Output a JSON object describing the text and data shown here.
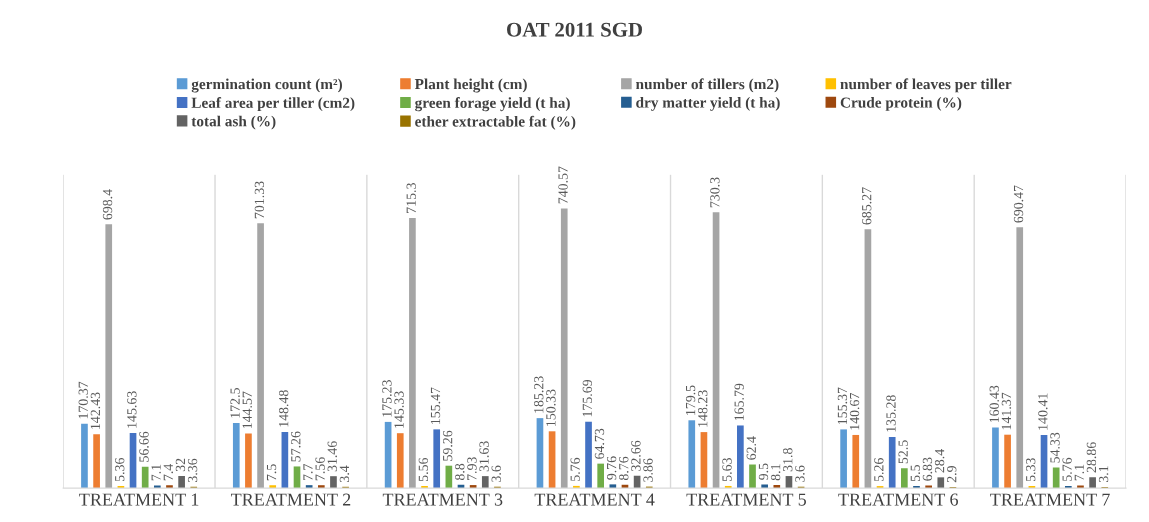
{
  "chart_data": {
    "type": "bar",
    "title": "OAT 2011 SGD",
    "categories": [
      "TREATMENT 1",
      "TREATMENT 2",
      "TREATMENT 3",
      "TREATMENT 4",
      "TREATMENT 5",
      "TREATMENT 6",
      "TREATMENT 7"
    ],
    "series": [
      {
        "name": "germination count (m²)",
        "color": "#5b9bd5",
        "values": [
          170.37,
          172.5,
          175.23,
          185.23,
          179.5,
          155.37,
          160.43
        ]
      },
      {
        "name": "Plant height (cm)",
        "color": "#ed7d31",
        "values": [
          142.43,
          144.57,
          145.33,
          150.33,
          148.23,
          140.67,
          141.37
        ]
      },
      {
        "name": "number of tillers (m2)",
        "color": "#a5a5a5",
        "values": [
          698.4,
          701.33,
          715.3,
          740.57,
          730.3,
          685.27,
          690.47
        ]
      },
      {
        "name": "number of leaves per tiller",
        "color": "#ffc000",
        "values": [
          5.36,
          7.5,
          5.56,
          5.76,
          5.63,
          5.26,
          5.33
        ]
      },
      {
        "name": "Leaf area per tiller (cm2)",
        "color": "#4472c4",
        "values": [
          145.63,
          148.48,
          155.47,
          175.69,
          165.79,
          135.28,
          140.41
        ]
      },
      {
        "name": "green forage yield (t ha)",
        "color": "#70ad47",
        "values": [
          56.66,
          57.26,
          59.26,
          64.73,
          62.4,
          52.5,
          54.33
        ]
      },
      {
        "name": "dry matter yield (t ha)",
        "color": "#255e91",
        "values": [
          7.1,
          7.7,
          8.8,
          9.76,
          9.5,
          5.5,
          5.76
        ]
      },
      {
        "name": "Crude protein (%)",
        "color": "#9e480e",
        "values": [
          7.4,
          7.56,
          7.93,
          8.76,
          8.1,
          6.83,
          7.1
        ]
      },
      {
        "name": "total ash (%)",
        "color": "#636363",
        "values": [
          32,
          31.46,
          31.63,
          32.66,
          31.8,
          28.4,
          28.86
        ]
      },
      {
        "name": "ether extractable fat (%)",
        "color": "#997300",
        "values": [
          3.36,
          3.4,
          3.6,
          3.86,
          3.6,
          2.9,
          3.1
        ]
      }
    ],
    "data_labels": true,
    "grid": "x",
    "legend": "top"
  }
}
